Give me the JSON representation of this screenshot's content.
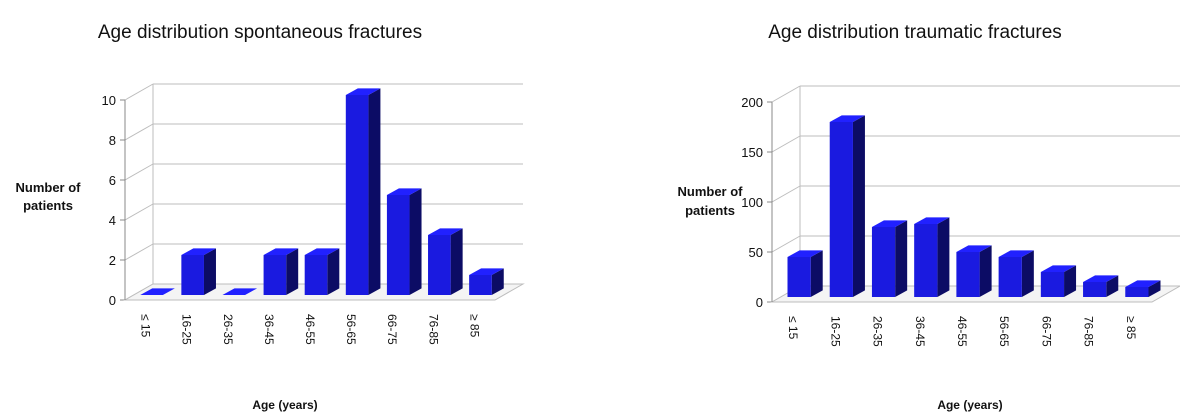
{
  "chart_data": [
    {
      "type": "bar",
      "title": "Age distribution spontaneous fractures",
      "ylabel_lines": [
        "Number of",
        "patients"
      ],
      "xlabel": "Age (years)",
      "categories": [
        "≤ 15",
        "16-25",
        "26-35",
        "36-45",
        "46-55",
        "56-65",
        "66-75",
        "76-85",
        "≥ 85"
      ],
      "values": [
        0,
        2,
        0,
        2,
        2,
        10,
        5,
        3,
        1
      ],
      "ylim": [
        0,
        10
      ],
      "yticks": [
        0,
        2,
        4,
        6,
        8,
        10
      ],
      "bar_color": "#1a1ae0",
      "grid": true
    },
    {
      "type": "bar",
      "title": "Age distribution traumatic fractures",
      "ylabel_lines": [
        "Number of",
        "patients"
      ],
      "xlabel": "Age (years)",
      "categories": [
        "≤ 15",
        "16-25",
        "26-35",
        "36-45",
        "46-55",
        "56-65",
        "66-75",
        "76-85",
        "≥ 85"
      ],
      "values": [
        40,
        175,
        70,
        73,
        45,
        40,
        25,
        15,
        10
      ],
      "ylim": [
        0,
        200
      ],
      "yticks": [
        0,
        50,
        100,
        150,
        200
      ],
      "bar_color": "#1a1ae0",
      "grid": true
    }
  ]
}
